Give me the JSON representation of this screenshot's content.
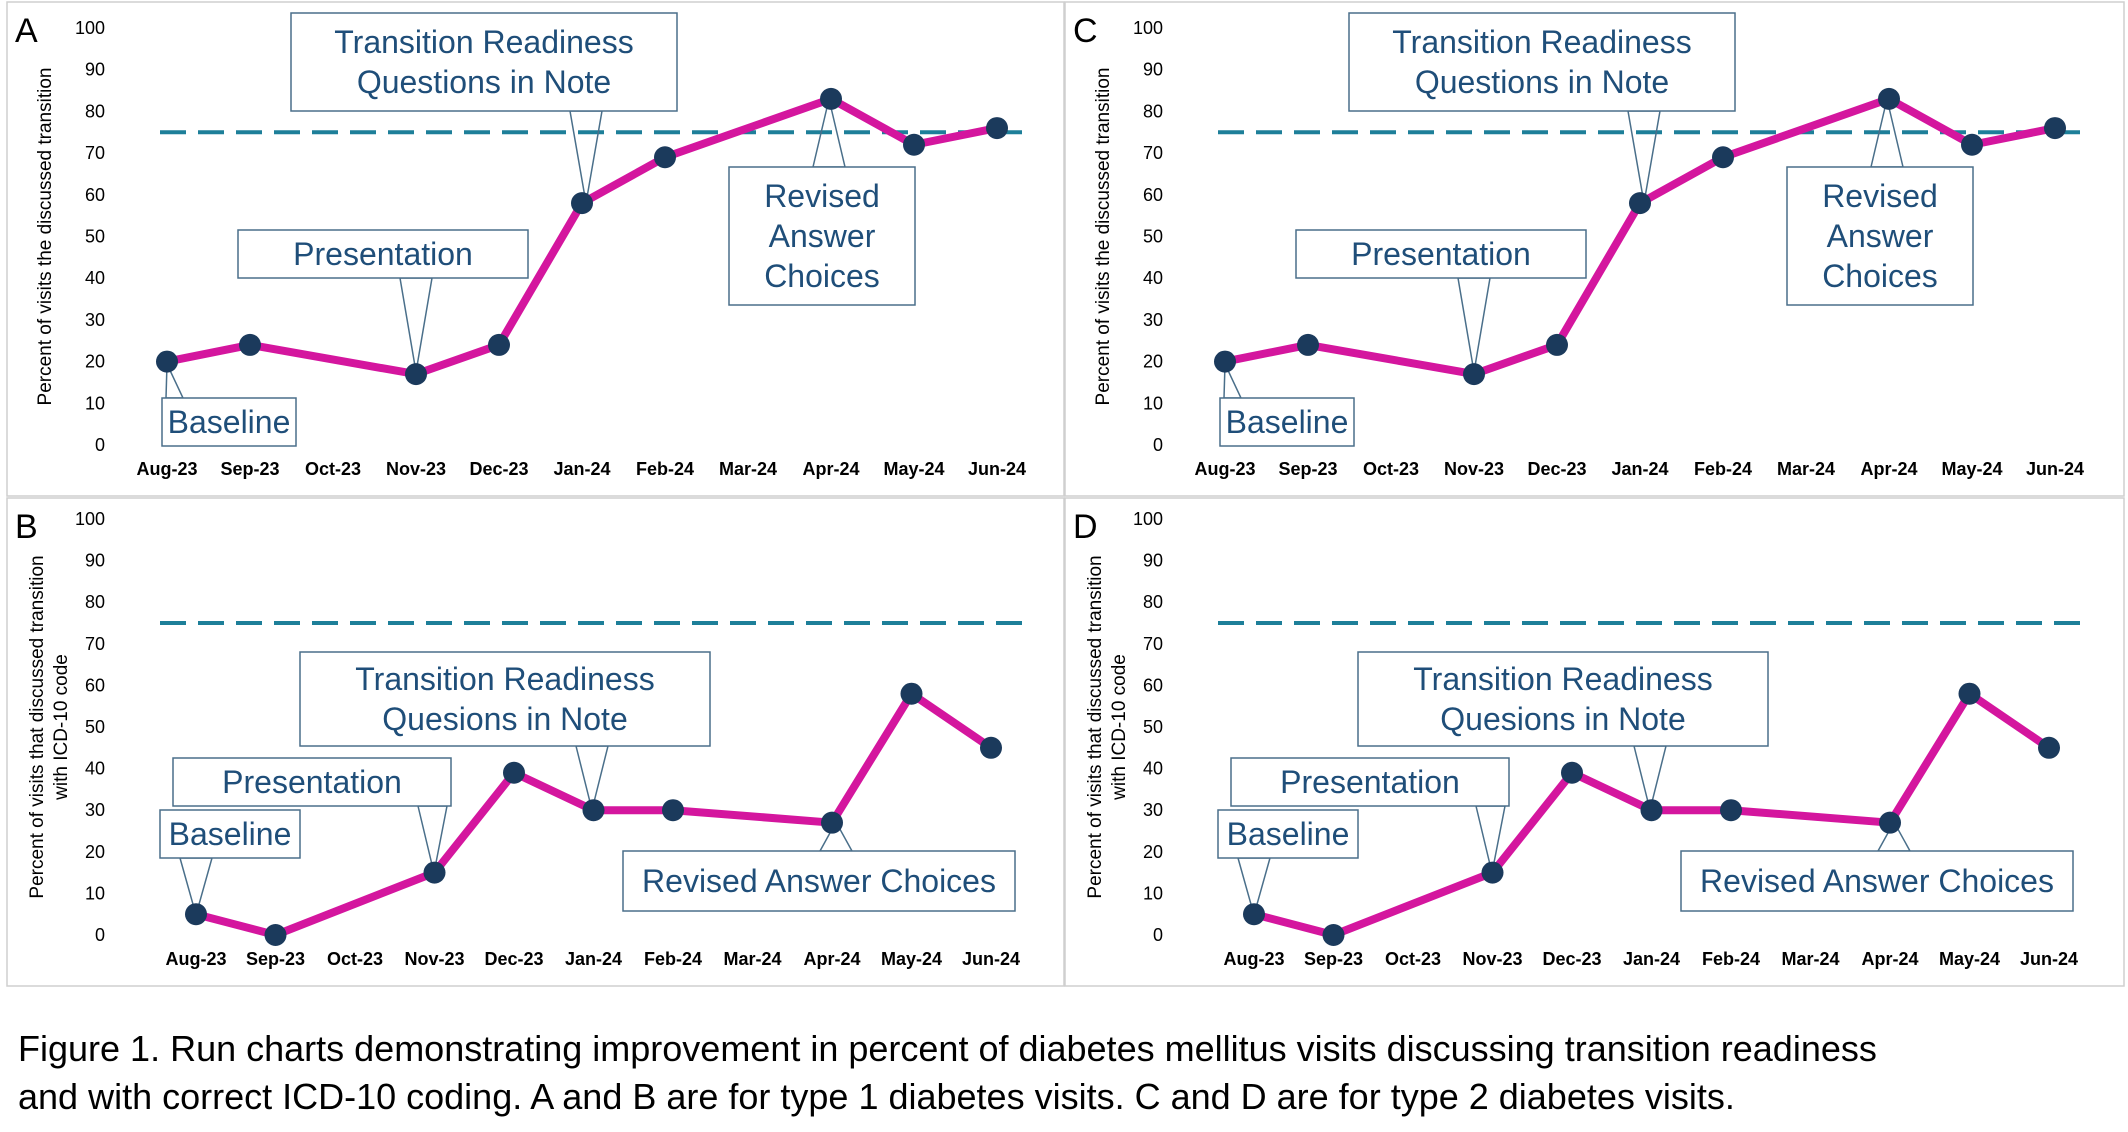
{
  "colors": {
    "line": "#d4169e",
    "point": "#1b3a5c",
    "target_line": "#1d7f99",
    "callout_text": "#1f4e79",
    "panel_border": "#cfcfcf"
  },
  "chart_data": [
    {
      "panel": "A",
      "type": "line",
      "categories": [
        "Aug-23",
        "Sep-23",
        "Oct-23",
        "Nov-23",
        "Dec-23",
        "Jan-24",
        "Feb-24",
        "Mar-24",
        "Apr-24",
        "May-24",
        "Jun-24"
      ],
      "series": [
        {
          "values": [
            20,
            24,
            null,
            17,
            24,
            58,
            69,
            null,
            83,
            72,
            76
          ],
          "connect_gaps": true
        }
      ],
      "target": 75,
      "ylabel": [
        "Percent of visits the discussed transition"
      ],
      "ylim": [
        0,
        100
      ],
      "yticks": [
        0,
        10,
        20,
        30,
        40,
        50,
        60,
        70,
        80,
        90,
        100
      ],
      "annotations": [
        {
          "lines": [
            "Baseline"
          ],
          "points_to": "Aug-23"
        },
        {
          "lines": [
            "Presentation"
          ],
          "points_to": "Nov-23"
        },
        {
          "lines": [
            "Transition Readiness",
            "Questions in Note"
          ],
          "points_to": "Jan-24"
        },
        {
          "lines": [
            "Revised",
            "Answer",
            "Choices"
          ],
          "points_to": "Apr-24"
        }
      ]
    },
    {
      "panel": "B",
      "type": "line",
      "categories": [
        "Aug-23",
        "Sep-23",
        "Oct-23",
        "Nov-23",
        "Dec-23",
        "Jan-24",
        "Feb-24",
        "Mar-24",
        "Apr-24",
        "May-24",
        "Jun-24"
      ],
      "series": [
        {
          "values": [
            5,
            0,
            null,
            15,
            39,
            30,
            30,
            null,
            27,
            58,
            45
          ],
          "connect_gaps": true
        }
      ],
      "target": 75,
      "ylabel": [
        "Percent of visits that discussed transition",
        "with ICD-10 code"
      ],
      "ylim": [
        0,
        100
      ],
      "yticks": [
        0,
        10,
        20,
        30,
        40,
        50,
        60,
        70,
        80,
        90,
        100
      ],
      "annotations": [
        {
          "lines": [
            "Baseline"
          ],
          "points_to": "Aug-23"
        },
        {
          "lines": [
            "Presentation"
          ],
          "points_to": "Nov-23"
        },
        {
          "lines": [
            "Transition Readiness",
            "Quesions in Note"
          ],
          "points_to": "Jan-24"
        },
        {
          "lines": [
            "Revised Answer Choices"
          ],
          "points_to": "Apr-24"
        }
      ]
    },
    {
      "panel": "C",
      "type": "line",
      "categories": [
        "Aug-23",
        "Sep-23",
        "Oct-23",
        "Nov-23",
        "Dec-23",
        "Jan-24",
        "Feb-24",
        "Mar-24",
        "Apr-24",
        "May-24",
        "Jun-24"
      ],
      "series": [
        {
          "values": [
            20,
            24,
            null,
            17,
            24,
            58,
            69,
            null,
            83,
            72,
            76
          ],
          "connect_gaps": true
        }
      ],
      "target": 75,
      "ylabel": [
        "Percent of visits the discussed transition"
      ],
      "ylim": [
        0,
        100
      ],
      "yticks": [
        0,
        10,
        20,
        30,
        40,
        50,
        60,
        70,
        80,
        90,
        100
      ],
      "annotations": [
        {
          "lines": [
            "Baseline"
          ],
          "points_to": "Aug-23"
        },
        {
          "lines": [
            "Presentation"
          ],
          "points_to": "Nov-23"
        },
        {
          "lines": [
            "Transition Readiness",
            "Questions in Note"
          ],
          "points_to": "Jan-24"
        },
        {
          "lines": [
            "Revised",
            "Answer",
            "Choices"
          ],
          "points_to": "Apr-24"
        }
      ]
    },
    {
      "panel": "D",
      "type": "line",
      "categories": [
        "Aug-23",
        "Sep-23",
        "Oct-23",
        "Nov-23",
        "Dec-23",
        "Jan-24",
        "Feb-24",
        "Mar-24",
        "Apr-24",
        "May-24",
        "Jun-24"
      ],
      "series": [
        {
          "values": [
            5,
            0,
            null,
            15,
            39,
            30,
            30,
            null,
            27,
            58,
            45
          ],
          "connect_gaps": true
        }
      ],
      "target": 75,
      "ylabel": [
        "Percent of visits that discussed transition",
        "with ICD-10 code"
      ],
      "ylim": [
        0,
        100
      ],
      "yticks": [
        0,
        10,
        20,
        30,
        40,
        50,
        60,
        70,
        80,
        90,
        100
      ],
      "annotations": [
        {
          "lines": [
            "Baseline"
          ],
          "points_to": "Aug-23"
        },
        {
          "lines": [
            "Presentation"
          ],
          "points_to": "Nov-23"
        },
        {
          "lines": [
            "Transition Readiness",
            "Quesions in Note"
          ],
          "points_to": "Jan-24"
        },
        {
          "lines": [
            "Revised Answer Choices"
          ],
          "points_to": "Apr-24"
        }
      ]
    }
  ],
  "caption": {
    "line1": "Figure 1. Run charts demonstrating improvement in percent of diabetes mellitus visits discussing transition readiness",
    "line2": "and with correct ICD-10 coding. A and B are for type 1 diabetes visits. C and D are for type 2 diabetes visits."
  }
}
